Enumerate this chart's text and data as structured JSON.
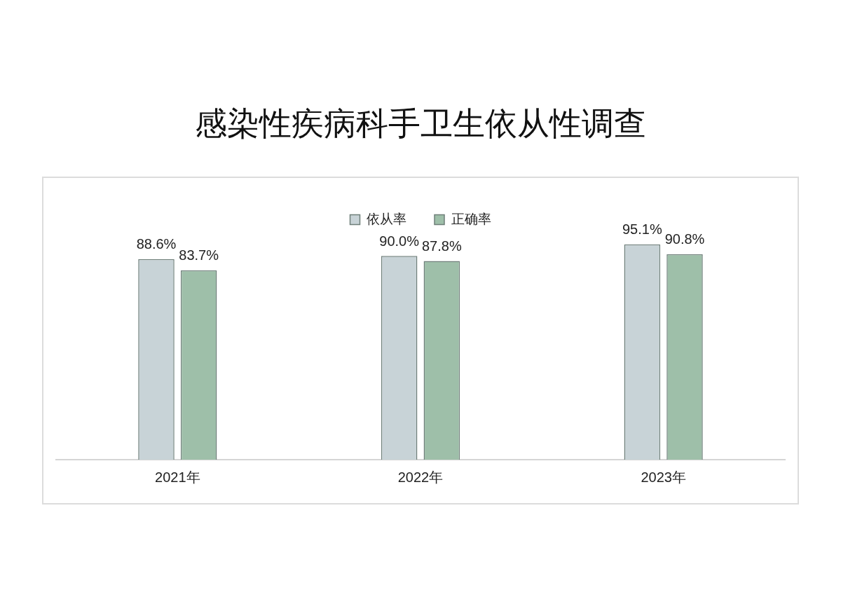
{
  "chart_data": {
    "type": "bar",
    "title": "感染性疾病科手卫生依从性调查",
    "categories": [
      "2021年",
      "2022年",
      "2023年"
    ],
    "series": [
      {
        "name": "依从率",
        "color": "#c8d3d7",
        "values": [
          88.6,
          90.0,
          95.1
        ],
        "value_labels": [
          "88.6%",
          "90.0%",
          "95.1%"
        ]
      },
      {
        "name": "正确率",
        "color": "#9ebfa9",
        "values": [
          83.7,
          87.8,
          90.8
        ],
        "value_labels": [
          "83.7%",
          "87.8%",
          "90.8%"
        ]
      }
    ],
    "tick_labels": "x",
    "grid": false,
    "legend": "top"
  }
}
